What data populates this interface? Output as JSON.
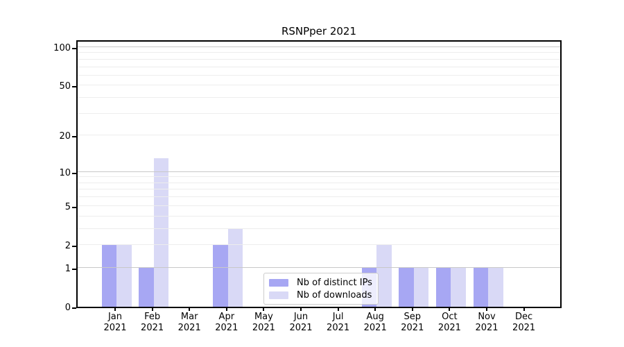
{
  "chart": {
    "title": "RSNPper 2021"
  },
  "chart_data": {
    "type": "bar",
    "title": "RSNPper 2021",
    "categories": [
      "Jan",
      "Feb",
      "Mar",
      "Apr",
      "May",
      "Jun",
      "Jul",
      "Aug",
      "Sep",
      "Oct",
      "Nov",
      "Dec"
    ],
    "year_label": "2021",
    "series": [
      {
        "name": "Nb of distinct IPs",
        "color": "#a7a7f3",
        "values": [
          2,
          1,
          0,
          2,
          0,
          0,
          0,
          1,
          1,
          1,
          1,
          0
        ]
      },
      {
        "name": "Nb of downloads",
        "color": "#d9d9f6",
        "values": [
          2,
          13,
          0,
          3,
          0,
          0,
          0,
          2,
          1,
          1,
          1,
          0
        ]
      }
    ],
    "ylabel": "",
    "xlabel": "",
    "yscale": {
      "type": "log1p",
      "max": 116
    },
    "yticks": [
      0,
      1,
      2,
      5,
      10,
      20,
      50,
      100
    ],
    "major_gridlines": [
      1,
      10,
      100
    ],
    "minor_gridlines": [
      2,
      3,
      4,
      5,
      6,
      7,
      8,
      9,
      20,
      30,
      40,
      50,
      60,
      70,
      80,
      90
    ],
    "grid": true,
    "legend": {
      "position": "lower center"
    },
    "colors": {
      "major_grid": "#c8c8c8",
      "minor_grid": "#ededed",
      "spine": "#000000",
      "text": "#000000"
    }
  }
}
